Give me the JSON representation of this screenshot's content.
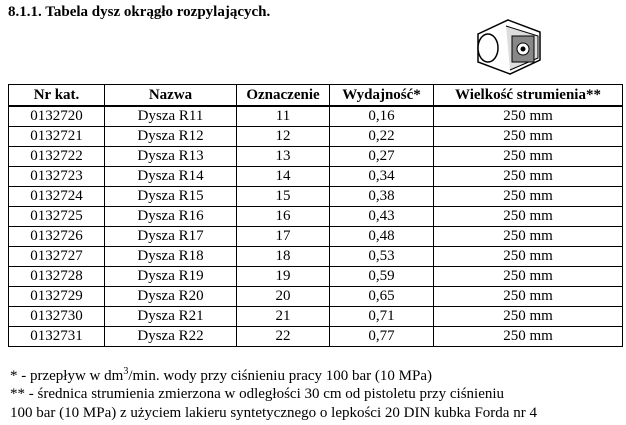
{
  "header": {
    "title": "8.1.1. Tabela dysz okrągło rozpylających."
  },
  "table": {
    "columns": [
      "Nr kat.",
      "Nazwa",
      "Oznaczenie",
      "Wydajność*",
      "Wielkość strumienia**"
    ],
    "rows": [
      [
        "0132720",
        "Dysza R11",
        "11",
        "0,16",
        "250 mm"
      ],
      [
        "0132721",
        "Dysza R12",
        "12",
        "0,22",
        "250 mm"
      ],
      [
        "0132722",
        "Dysza R13",
        "13",
        "0,27",
        "250 mm"
      ],
      [
        "0132723",
        "Dysza R14",
        "14",
        "0,34",
        "250 mm"
      ],
      [
        "0132724",
        "Dysza R15",
        "15",
        "0,38",
        "250 mm"
      ],
      [
        "0132725",
        "Dysza R16",
        "16",
        "0,43",
        "250 mm"
      ],
      [
        "0132726",
        "Dysza R17",
        "17",
        "0,48",
        "250 mm"
      ],
      [
        "0132727",
        "Dysza R18",
        "18",
        "0,53",
        "250 mm"
      ],
      [
        "0132728",
        "Dysza R19",
        "19",
        "0,59",
        "250 mm"
      ],
      [
        "0132729",
        "Dysza R20",
        "20",
        "0,65",
        "250 mm"
      ],
      [
        "0132730",
        "Dysza R21",
        "21",
        "0,71",
        "250 mm"
      ],
      [
        "0132731",
        "Dysza R22",
        "22",
        "0,77",
        "250 mm"
      ]
    ]
  },
  "footnotes": {
    "first": {
      "before": "* - przepływ w dm",
      "sup": "3",
      "after": "/min. wody przy ciśnieniu pracy 100 bar (10 MPa)"
    },
    "second": [
      "** - średnica strumienia zmierzona w odległości 30 cm od pistoletu przy ciśnieniu",
      "100 bar (10 MPa) z użyciem lakieru syntetycznego o lepkości 20 DIN kubka Forda nr 4"
    ]
  }
}
